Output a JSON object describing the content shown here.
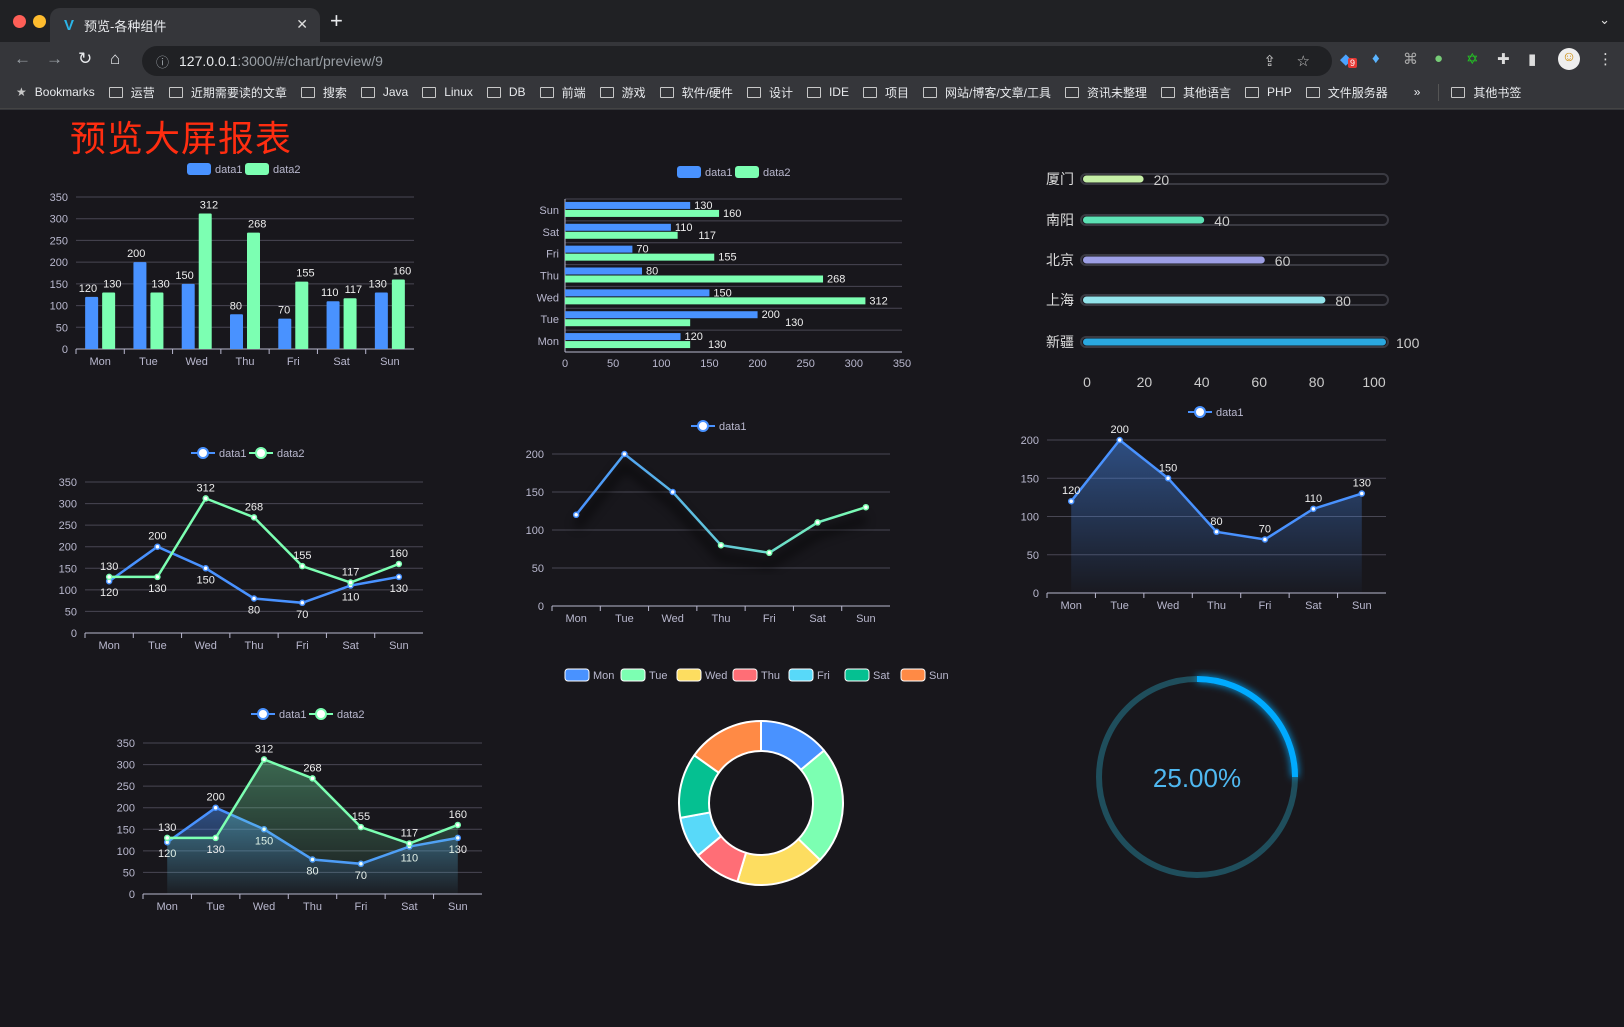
{
  "browser": {
    "tab_title": "预览-各种组件",
    "url_host": "127.0.0.1",
    "url_path": ":3000/#/chart/preview/9",
    "extension_badge": "9",
    "bookmarks": [
      "Bookmarks",
      "运营",
      "近期需要读的文章",
      "搜索",
      "Java",
      "Linux",
      "DB",
      "前端",
      "游戏",
      "软件/硬件",
      "设计",
      "IDE",
      "项目",
      "网站/博客/文章/工具",
      "资讯未整理",
      "其他语言",
      "PHP",
      "文件服务器"
    ],
    "more": "»",
    "other_bookmarks": "其他书签"
  },
  "page": {
    "title": "预览大屏报表"
  },
  "colors": {
    "blue": "#4992ff",
    "green": "#7cffb2",
    "yellow": "#fddd60",
    "red": "#ff6e76",
    "cyan": "#58d9f9",
    "teal": "#05c091",
    "orange": "#ff8a45",
    "title": "#ff2d10",
    "background": "#18171c"
  },
  "chart_data": [
    {
      "type": "bar",
      "categories": [
        "Mon",
        "Tue",
        "Wed",
        "Thu",
        "Fri",
        "Sat",
        "Sun"
      ],
      "series": [
        {
          "name": "data1",
          "values": [
            120,
            200,
            150,
            80,
            70,
            110,
            130
          ]
        },
        {
          "name": "data2",
          "values": [
            130,
            130,
            312,
            268,
            155,
            117,
            160
          ]
        }
      ],
      "ylim": [
        0,
        350
      ],
      "yticks": [
        0,
        50,
        100,
        150,
        200,
        250,
        300,
        350
      ],
      "legend": "top",
      "grid": true,
      "data_labels": true
    },
    {
      "type": "bar",
      "orientation": "horizontal",
      "categories": [
        "Mon",
        "Tue",
        "Wed",
        "Thu",
        "Fri",
        "Sat",
        "Sun"
      ],
      "series": [
        {
          "name": "data1",
          "values": [
            120,
            200,
            150,
            80,
            70,
            110,
            130
          ]
        },
        {
          "name": "data2",
          "values": [
            130,
            130,
            312,
            268,
            155,
            117,
            160
          ]
        }
      ],
      "xlim": [
        0,
        350
      ],
      "xticks": [
        0,
        50,
        100,
        150,
        200,
        250,
        300,
        350
      ],
      "legend": "top",
      "grid": true,
      "data_labels": true
    },
    {
      "type": "bar",
      "orientation": "horizontal",
      "style": "progress",
      "categories": [
        "厦门",
        "南阳",
        "北京",
        "上海",
        "新疆"
      ],
      "values": [
        20,
        40,
        60,
        80,
        100
      ],
      "colors": [
        "#c5efa6",
        "#5de2b5",
        "#9d9fe5",
        "#93e4eb",
        "#2aa8e0"
      ],
      "xlim": [
        0,
        100
      ],
      "xticks": [
        0,
        20,
        40,
        60,
        80,
        100
      ]
    },
    {
      "type": "line",
      "categories": [
        "Mon",
        "Tue",
        "Wed",
        "Thu",
        "Fri",
        "Sat",
        "Sun"
      ],
      "series": [
        {
          "name": "data1",
          "values": [
            120,
            200,
            150,
            80,
            70,
            110,
            130
          ]
        },
        {
          "name": "data2",
          "values": [
            130,
            130,
            312,
            268,
            155,
            117,
            160
          ]
        }
      ],
      "ylim": [
        0,
        350
      ],
      "yticks": [
        0,
        50,
        100,
        150,
        200,
        250,
        300,
        350
      ],
      "legend": "top",
      "grid": true,
      "data_labels": true
    },
    {
      "type": "line",
      "categories": [
        "Mon",
        "Tue",
        "Wed",
        "Thu",
        "Fri",
        "Sat",
        "Sun"
      ],
      "series": [
        {
          "name": "data1",
          "values": [
            120,
            200,
            150,
            80,
            70,
            110,
            130
          ]
        }
      ],
      "ylim": [
        0,
        200
      ],
      "yticks": [
        0,
        50,
        100,
        150,
        200
      ],
      "legend": "top",
      "grid": true,
      "data_labels": false,
      "gradient": [
        "#4992ff",
        "#7cffb2"
      ]
    },
    {
      "type": "area",
      "categories": [
        "Mon",
        "Tue",
        "Wed",
        "Thu",
        "Fri",
        "Sat",
        "Sun"
      ],
      "series": [
        {
          "name": "data1",
          "values": [
            120,
            200,
            150,
            80,
            70,
            110,
            130
          ]
        }
      ],
      "ylim": [
        0,
        200
      ],
      "yticks": [
        0,
        50,
        100,
        150,
        200
      ],
      "legend": "top",
      "grid": true,
      "data_labels": true
    },
    {
      "type": "area",
      "categories": [
        "Mon",
        "Tue",
        "Wed",
        "Thu",
        "Fri",
        "Sat",
        "Sun"
      ],
      "series": [
        {
          "name": "data1",
          "values": [
            120,
            200,
            150,
            80,
            70,
            110,
            130
          ]
        },
        {
          "name": "data2",
          "values": [
            130,
            130,
            312,
            268,
            155,
            117,
            160
          ]
        }
      ],
      "ylim": [
        0,
        350
      ],
      "yticks": [
        0,
        50,
        100,
        150,
        200,
        250,
        300,
        350
      ],
      "legend": "top",
      "grid": true,
      "data_labels": true
    },
    {
      "type": "pie",
      "style": "donut",
      "categories": [
        "Mon",
        "Tue",
        "Wed",
        "Thu",
        "Fri",
        "Sat",
        "Sun"
      ],
      "values": [
        120,
        200,
        150,
        80,
        70,
        110,
        130
      ],
      "legend": "top"
    },
    {
      "type": "gauge",
      "value": 25,
      "label": "25.00%"
    }
  ]
}
